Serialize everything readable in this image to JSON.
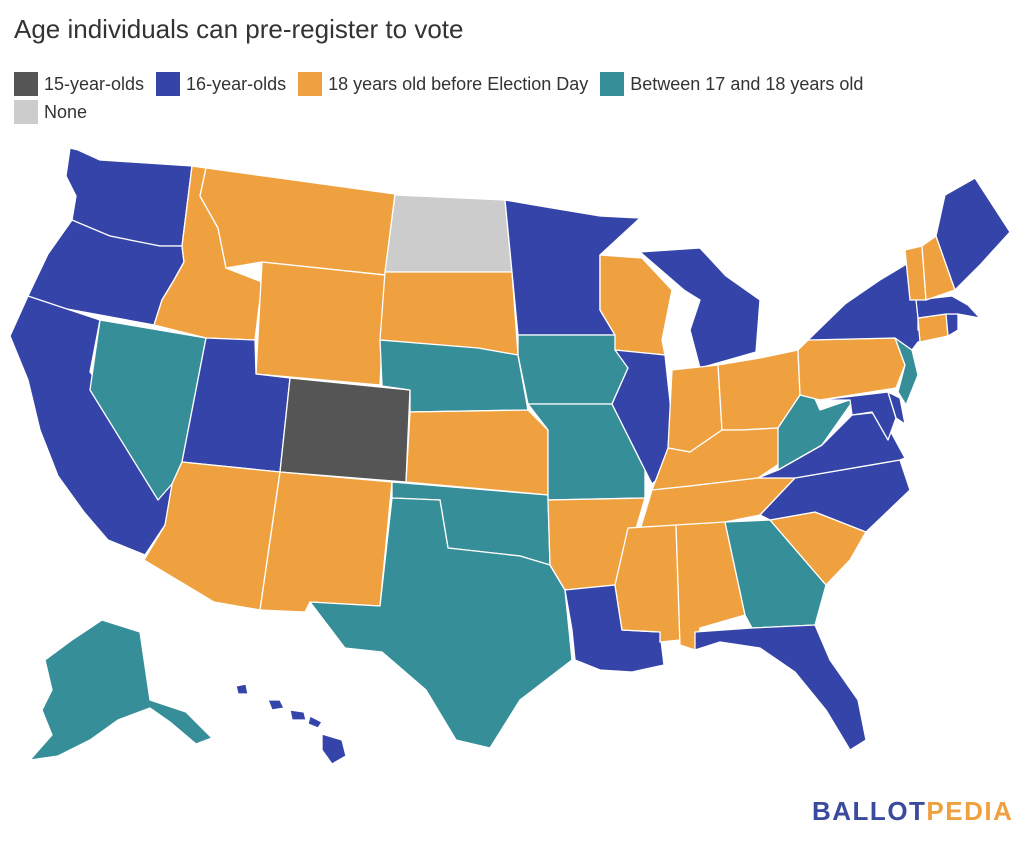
{
  "title": "Age individuals can pre-register to vote",
  "legend": [
    {
      "key": "c15",
      "label": "15-year-olds",
      "color": "#555555"
    },
    {
      "key": "c16",
      "label": "16-year-olds",
      "color": "#3444a8"
    },
    {
      "key": "c18",
      "label": "18 years old before Election Day",
      "color": "#f0a13f"
    },
    {
      "key": "c17",
      "label": "Between 17 and 18 years old",
      "color": "#368e99"
    },
    {
      "key": "none",
      "label": "None",
      "color": "#cccccc"
    }
  ],
  "states": {
    "WA": "c16",
    "OR": "c16",
    "CA": "c16",
    "NV": "c17",
    "ID": "c18",
    "MT": "c18",
    "WY": "c18",
    "UT": "c16",
    "AZ": "c18",
    "CO": "c15",
    "NM": "c18",
    "ND": "none",
    "SD": "c18",
    "NE": "c17",
    "KS": "c18",
    "OK": "c17",
    "TX": "c17",
    "MN": "c16",
    "IA": "c17",
    "MO": "c17",
    "AR": "c18",
    "LA": "c16",
    "WI": "c18",
    "IL": "c16",
    "MI": "c16",
    "IN": "c18",
    "OH": "c18",
    "KY": "c18",
    "TN": "c18",
    "MS": "c18",
    "AL": "c18",
    "GA": "c17",
    "FL": "c16",
    "SC": "c18",
    "NC": "c16",
    "VA": "c16",
    "WV": "c17",
    "MD": "c16",
    "DE": "c16",
    "PA": "c18",
    "NJ": "c17",
    "NY": "c16",
    "CT": "c18",
    "RI": "c16",
    "MA": "c16",
    "VT": "c18",
    "NH": "c18",
    "ME": "c16",
    "AK": "c17",
    "HI": "c16"
  },
  "brand": {
    "part1": "BALLOT",
    "part2": "PEDIA"
  }
}
